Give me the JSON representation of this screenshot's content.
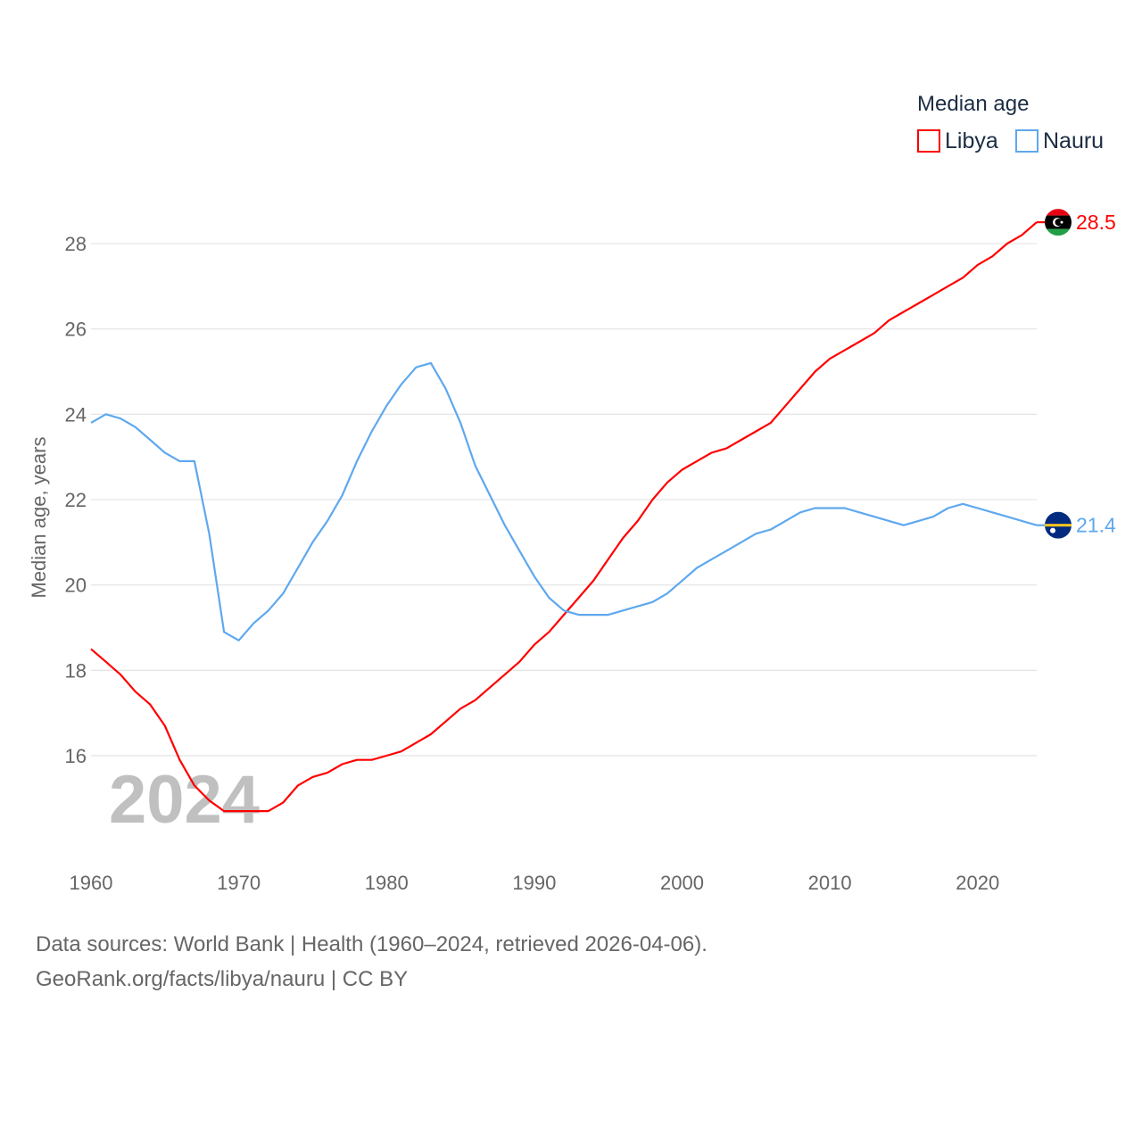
{
  "chart_data": {
    "type": "line",
    "title": "",
    "xlabel": "",
    "ylabel": "Median age, years",
    "xlim": [
      1960,
      2024
    ],
    "ylim": [
      14.2,
      29
    ],
    "yticks": [
      16,
      18,
      20,
      22,
      24,
      26,
      28
    ],
    "xticks": [
      1960,
      1970,
      1980,
      1990,
      2000,
      2010,
      2020
    ],
    "grid": true,
    "legend": {
      "title": "Median age",
      "placement": "top-right"
    },
    "year_watermark": "2024",
    "x": [
      1960,
      1961,
      1962,
      1963,
      1964,
      1965,
      1966,
      1967,
      1968,
      1969,
      1970,
      1971,
      1972,
      1973,
      1974,
      1975,
      1976,
      1977,
      1978,
      1979,
      1980,
      1981,
      1982,
      1983,
      1984,
      1985,
      1986,
      1987,
      1988,
      1989,
      1990,
      1991,
      1992,
      1993,
      1994,
      1995,
      1996,
      1997,
      1998,
      1999,
      2000,
      2001,
      2002,
      2003,
      2004,
      2005,
      2006,
      2007,
      2008,
      2009,
      2010,
      2011,
      2012,
      2013,
      2014,
      2015,
      2016,
      2017,
      2018,
      2019,
      2020,
      2021,
      2022,
      2023,
      2024
    ],
    "series": [
      {
        "name": "Libya",
        "color": "#ff0000",
        "end_label": "28.5",
        "values": [
          18.5,
          18.2,
          17.9,
          17.5,
          17.2,
          16.7,
          15.9,
          15.3,
          14.95,
          14.7,
          14.7,
          14.7,
          14.7,
          14.9,
          15.3,
          15.5,
          15.6,
          15.8,
          15.9,
          15.9,
          16.0,
          16.1,
          16.3,
          16.5,
          16.8,
          17.1,
          17.3,
          17.6,
          17.9,
          18.2,
          18.6,
          18.9,
          19.3,
          19.7,
          20.1,
          20.6,
          21.1,
          21.5,
          22.0,
          22.4,
          22.7,
          22.9,
          23.1,
          23.2,
          23.4,
          23.6,
          23.8,
          24.2,
          24.6,
          25.0,
          25.3,
          25.5,
          25.7,
          25.9,
          26.2,
          26.4,
          26.6,
          26.8,
          27.0,
          27.2,
          27.5,
          27.7,
          28.0,
          28.2,
          28.5
        ]
      },
      {
        "name": "Nauru",
        "color": "#5ea8ef",
        "end_label": "21.4",
        "values": [
          23.8,
          24.0,
          23.9,
          23.7,
          23.4,
          23.1,
          22.9,
          22.9,
          21.2,
          18.9,
          18.7,
          19.1,
          19.4,
          19.8,
          20.4,
          21.0,
          21.5,
          22.1,
          22.9,
          23.6,
          24.2,
          24.7,
          25.1,
          25.2,
          24.6,
          23.8,
          22.8,
          22.1,
          21.4,
          20.8,
          20.2,
          19.7,
          19.4,
          19.3,
          19.3,
          19.3,
          19.4,
          19.5,
          19.6,
          19.8,
          20.1,
          20.4,
          20.6,
          20.8,
          21.0,
          21.2,
          21.3,
          21.5,
          21.7,
          21.8,
          21.8,
          21.8,
          21.7,
          21.6,
          21.5,
          21.4,
          21.5,
          21.6,
          21.8,
          21.9,
          21.8,
          21.7,
          21.6,
          21.5,
          21.4
        ]
      }
    ]
  },
  "footer": {
    "line1": "Data sources: World Bank | Health (1960–2024, retrieved 2026-04-06).",
    "line2": "GeoRank.org/facts/libya/nauru | CC BY"
  }
}
